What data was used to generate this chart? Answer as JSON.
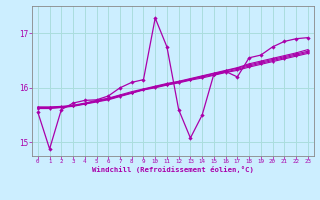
{
  "xlabel": "Windchill (Refroidissement éolien,°C)",
  "background_color": "#cceeff",
  "grid_color": "#aadddd",
  "line_color": "#aa00aa",
  "xlim": [
    -0.5,
    23.5
  ],
  "ylim": [
    14.75,
    17.5
  ],
  "yticks": [
    15,
    16,
    17
  ],
  "xticks": [
    0,
    1,
    2,
    3,
    4,
    5,
    6,
    7,
    8,
    9,
    10,
    11,
    12,
    13,
    14,
    15,
    16,
    17,
    18,
    19,
    20,
    21,
    22,
    23
  ],
  "series": [
    [
      15.55,
      14.88,
      15.6,
      15.72,
      15.77,
      15.78,
      15.85,
      16.0,
      16.1,
      16.15,
      17.28,
      16.75,
      15.6,
      15.08,
      15.5,
      16.25,
      16.3,
      16.2,
      16.55,
      16.6,
      16.75,
      16.85,
      16.9,
      16.92
    ],
    [
      15.62,
      15.62,
      15.64,
      15.66,
      15.7,
      15.74,
      15.78,
      15.84,
      15.9,
      15.96,
      16.0,
      16.05,
      16.09,
      16.14,
      16.18,
      16.23,
      16.28,
      16.32,
      16.38,
      16.43,
      16.48,
      16.53,
      16.58,
      16.63
    ],
    [
      15.63,
      15.63,
      15.64,
      15.67,
      15.71,
      15.75,
      15.79,
      15.85,
      15.91,
      15.97,
      16.01,
      16.06,
      16.1,
      16.15,
      16.2,
      16.24,
      16.29,
      16.34,
      16.4,
      16.45,
      16.5,
      16.55,
      16.6,
      16.65
    ],
    [
      15.64,
      15.64,
      15.65,
      15.67,
      15.71,
      15.76,
      15.8,
      15.86,
      15.91,
      15.97,
      16.02,
      16.07,
      16.11,
      16.16,
      16.21,
      16.26,
      16.31,
      16.36,
      16.42,
      16.47,
      16.52,
      16.57,
      16.62,
      16.67
    ],
    [
      15.65,
      15.65,
      15.66,
      15.68,
      15.72,
      15.77,
      15.81,
      15.87,
      15.93,
      15.98,
      16.03,
      16.08,
      16.12,
      16.17,
      16.22,
      16.27,
      16.32,
      16.37,
      16.44,
      16.49,
      16.54,
      16.59,
      16.64,
      16.7
    ]
  ]
}
